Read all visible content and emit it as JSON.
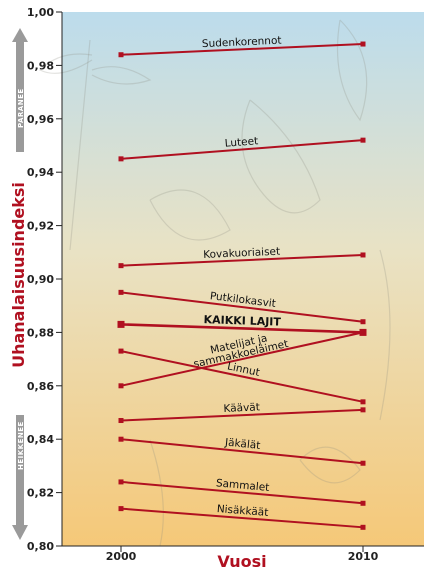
{
  "chart_data": {
    "type": "line",
    "title": "",
    "xlabel": "Vuosi",
    "ylabel": "Uhanalaisuusindeksi",
    "x": [
      2000,
      2010
    ],
    "x_ticks": [
      "2000",
      "2010"
    ],
    "ylim": [
      0.8,
      1.0
    ],
    "y_ticks": [
      "0,80",
      "0,82",
      "0,84",
      "0,86",
      "0,88",
      "0,90",
      "0,92",
      "0,94",
      "0,96",
      "0,98",
      "1,00"
    ],
    "grid": false,
    "up_label": "PARANEE",
    "down_label": "HEIKKENEE",
    "colors": {
      "line": "#b01020",
      "axis_title": "#b01020",
      "arrow": "#9a9a9a",
      "bg_top": "#bcdcec",
      "bg_bottom": "#f5c878"
    },
    "series": [
      {
        "name": "Sudenkorennot",
        "values": [
          0.984,
          0.988
        ]
      },
      {
        "name": "Luteet",
        "values": [
          0.945,
          0.952
        ]
      },
      {
        "name": "Kovakuoriaiset",
        "values": [
          0.905,
          0.909
        ]
      },
      {
        "name": "Putkilokasvit",
        "values": [
          0.895,
          0.884
        ]
      },
      {
        "name": "KAIKKI LAJIT",
        "values": [
          0.883,
          0.88
        ],
        "emphasis": true
      },
      {
        "name": "Matelijat ja sammakkoeläimet",
        "values": [
          0.86,
          0.88
        ]
      },
      {
        "name": "Linnut",
        "values": [
          0.873,
          0.854
        ]
      },
      {
        "name": "Käävät",
        "values": [
          0.847,
          0.851
        ]
      },
      {
        "name": "Jäkälät",
        "values": [
          0.84,
          0.831
        ]
      },
      {
        "name": "Sammalet",
        "values": [
          0.824,
          0.816
        ]
      },
      {
        "name": "Nisäkkäät",
        "values": [
          0.814,
          0.807
        ]
      }
    ]
  }
}
